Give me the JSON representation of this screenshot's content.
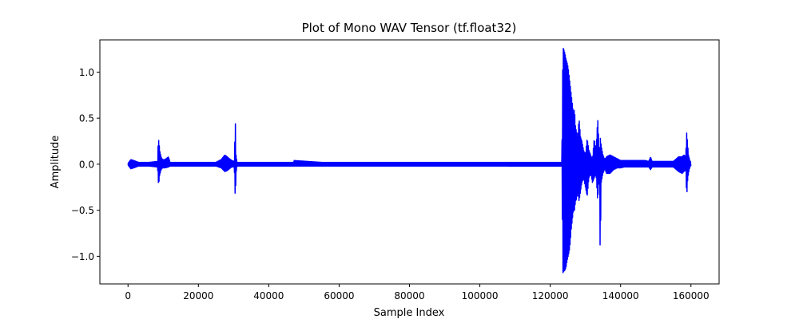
{
  "chart_data": {
    "type": "line",
    "title": "Plot of Mono WAV Tensor (tf.float32)",
    "xlabel": "Sample Index",
    "ylabel": "Amplitude",
    "xlim": [
      -8000,
      168000
    ],
    "ylim": [
      -1.3,
      1.35
    ],
    "xticks": [
      0,
      20000,
      40000,
      60000,
      80000,
      100000,
      120000,
      140000,
      160000
    ],
    "xtick_labels": [
      "0",
      "20000",
      "40000",
      "60000",
      "80000",
      "100000",
      "120000",
      "140000",
      "160000"
    ],
    "yticks": [
      -1.0,
      -0.5,
      0.0,
      0.5,
      1.0
    ],
    "ytick_labels": [
      "−1.0",
      "−0.5",
      "0.0",
      "0.5",
      "1.0"
    ],
    "grid": false,
    "legend": "none",
    "series": [
      {
        "color": "#0000ff",
        "x": [
          0,
          800,
          1600,
          3000,
          6000,
          8400,
          8600,
          8800,
          9000,
          9400,
          9800,
          10500,
          11500,
          12000,
          15000,
          20000,
          25000,
          26500,
          27500,
          28200,
          28800,
          29500,
          30200,
          30500,
          30700,
          31000,
          32000,
          40000,
          47000,
          47200,
          55000,
          70000,
          90000,
          110000,
          122500,
          123300,
          123600,
          123900,
          124200,
          124500,
          124800,
          125100,
          125400,
          125700,
          126000,
          126300,
          126600,
          126900,
          127200,
          127500,
          127800,
          128200,
          128600,
          129000,
          129500,
          130000,
          130500,
          131000,
          131500,
          132000,
          132500,
          133000,
          133500,
          134000,
          134200,
          134500,
          135000,
          135500,
          136000,
          137000,
          138000,
          139000,
          140000,
          141000,
          143000,
          145000,
          147000,
          148000,
          148500,
          149000,
          151000,
          153000,
          155000,
          156500,
          157500,
          158000,
          158500,
          158800,
          159000,
          159300,
          159700,
          160000
        ],
        "y_upper": [
          0.01,
          0.05,
          0.04,
          0.02,
          0.02,
          0.03,
          0.27,
          0.25,
          0.15,
          0.08,
          0.05,
          0.05,
          0.08,
          0.02,
          0.02,
          0.02,
          0.02,
          0.05,
          0.1,
          0.08,
          0.06,
          0.04,
          0.03,
          0.48,
          0.1,
          0.02,
          0.02,
          0.02,
          0.02,
          0.04,
          0.02,
          0.02,
          0.02,
          0.02,
          0.02,
          0.02,
          1.27,
          1.24,
          1.2,
          1.14,
          1.1,
          1.05,
          0.95,
          0.85,
          0.75,
          0.65,
          0.55,
          0.6,
          0.4,
          0.35,
          0.28,
          0.5,
          0.3,
          0.25,
          0.15,
          0.1,
          0.28,
          0.15,
          0.1,
          0.05,
          0.28,
          0.15,
          0.5,
          0.1,
          0.3,
          0.2,
          0.1,
          0.05,
          0.08,
          0.1,
          0.08,
          0.06,
          0.04,
          0.04,
          0.04,
          0.04,
          0.04,
          0.03,
          0.08,
          0.03,
          0.03,
          0.03,
          0.03,
          0.08,
          0.08,
          0.1,
          0.08,
          0.35,
          0.25,
          0.1,
          0.04,
          0.02
        ],
        "y_lower": [
          -0.01,
          -0.05,
          -0.04,
          -0.02,
          -0.02,
          -0.03,
          -0.2,
          -0.19,
          -0.12,
          -0.06,
          -0.04,
          -0.04,
          -0.03,
          -0.02,
          -0.02,
          -0.02,
          -0.02,
          -0.04,
          -0.08,
          -0.07,
          -0.05,
          -0.03,
          -0.03,
          -0.4,
          -0.1,
          -0.02,
          -0.02,
          -0.02,
          -0.02,
          -0.02,
          -0.02,
          -0.02,
          -0.02,
          -0.02,
          -0.02,
          -0.02,
          -1.18,
          -1.16,
          -1.15,
          -1.12,
          -1.05,
          -1.0,
          -0.95,
          -0.85,
          -0.7,
          -0.6,
          -0.5,
          -0.5,
          -0.4,
          -0.38,
          -0.3,
          -0.4,
          -0.3,
          -0.2,
          -0.15,
          -0.25,
          -0.35,
          -0.15,
          -0.1,
          -0.2,
          -0.15,
          -0.1,
          -0.4,
          -0.1,
          -1.02,
          -0.2,
          -0.1,
          -0.05,
          -0.1,
          -0.1,
          -0.06,
          -0.04,
          -0.04,
          -0.03,
          -0.03,
          -0.03,
          -0.03,
          -0.03,
          -0.06,
          -0.03,
          -0.03,
          -0.03,
          -0.03,
          -0.08,
          -0.1,
          -0.08,
          -0.06,
          -0.36,
          -0.2,
          -0.1,
          -0.03,
          -0.02
        ]
      }
    ]
  }
}
